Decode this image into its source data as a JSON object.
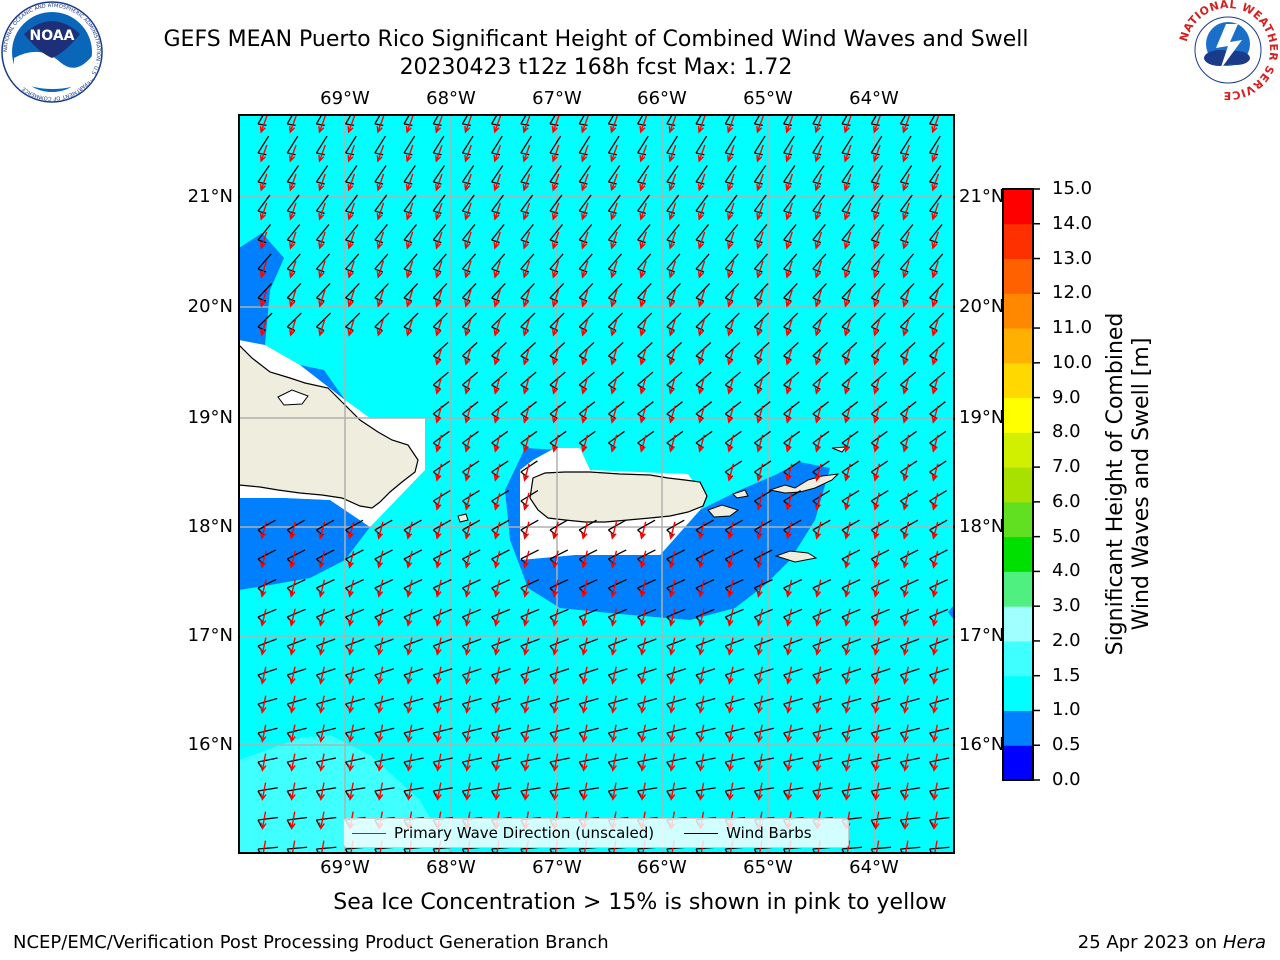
{
  "title": {
    "line1": "GEFS MEAN Puerto Rico Significant Height of Combined Wind Waves and Swell",
    "line2": "20230423 t12z 168h fcst   Max: 1.72"
  },
  "logos": {
    "noaa": "NOAA",
    "noaa_ring": "NATIONAL OCEANIC AND ATMOSPHERIC ADMINISTRATION · U.S. DEPARTMENT OF COMMERCE",
    "nws_ring": "NATIONAL WEATHER SERVICE"
  },
  "map": {
    "lon_labels": [
      "69°W",
      "68°W",
      "67°W",
      "66°W",
      "65°W",
      "64°W"
    ],
    "lat_labels": [
      "21°N",
      "20°N",
      "19°N",
      "18°N",
      "17°N",
      "16°N"
    ],
    "lon_range": [
      -70.0,
      -63.25
    ],
    "lat_range": [
      15.0,
      21.75
    ],
    "gridlines": true,
    "land_color": "#efeddd",
    "ocean_background_color": "#00ffff",
    "wave_arrow_color": "#ff0000",
    "barb_color": "#000000"
  },
  "legend": {
    "placement": "bottom-center",
    "items": [
      {
        "label": "Primary Wave Direction (unscaled)",
        "color": "#ff0000"
      },
      {
        "label": "Wind Barbs",
        "color": "#000000"
      }
    ]
  },
  "colorbar": {
    "label_line1": "Significant Height of Combined",
    "label_line2": "Wind Waves and Swell [m]",
    "ticks": [
      "0.0",
      "0.5",
      "1.0",
      "1.5",
      "2.0",
      "3.0",
      "4.0",
      "5.0",
      "6.0",
      "7.0",
      "8.0",
      "9.0",
      "10.0",
      "11.0",
      "12.0",
      "13.0",
      "14.0",
      "15.0"
    ],
    "colors": [
      "#0000ff",
      "#0080ff",
      "#00ffff",
      "#40ffff",
      "#a0ffff",
      "#50f080",
      "#00e000",
      "#60e020",
      "#a8e000",
      "#d0f000",
      "#ffff00",
      "#ffd800",
      "#ffb000",
      "#ff8800",
      "#ff6000",
      "#ff3000",
      "#ff0000"
    ]
  },
  "note": "Sea Ice Concentration > 15% is shown in pink to yellow",
  "footer": {
    "left": "NCEP/EMC/Verification Post Processing Product Generation Branch",
    "right_prefix": "25 Apr 2023 on ",
    "right_host": "Hera"
  }
}
